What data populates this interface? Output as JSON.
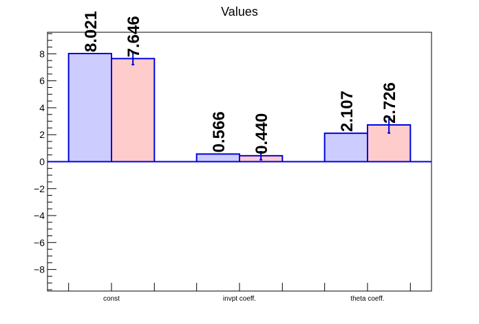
{
  "chart_data": {
    "type": "bar",
    "title": "Values",
    "xlabel": "",
    "ylabel": "",
    "categories": [
      "const",
      "invpt coeff.",
      "theta coeff."
    ],
    "ylim": [
      -9.6,
      9.6
    ],
    "yticks": [
      -8,
      -6,
      -4,
      -2,
      0,
      2,
      4,
      6,
      8
    ],
    "grid": false,
    "series": [
      {
        "values": [
          8.021,
          0.566,
          2.107
        ],
        "labels": [
          "8.021",
          "0.566",
          "2.107"
        ],
        "fill": "#ccccff",
        "stroke": "#0000dd"
      },
      {
        "values": [
          7.646,
          0.44,
          2.726
        ],
        "labels": [
          "7.646",
          "0.440",
          "2.726"
        ],
        "errors": [
          0.45,
          0.3,
          0.6
        ],
        "fill": "#ffcccc",
        "stroke": "#0000dd"
      }
    ]
  }
}
